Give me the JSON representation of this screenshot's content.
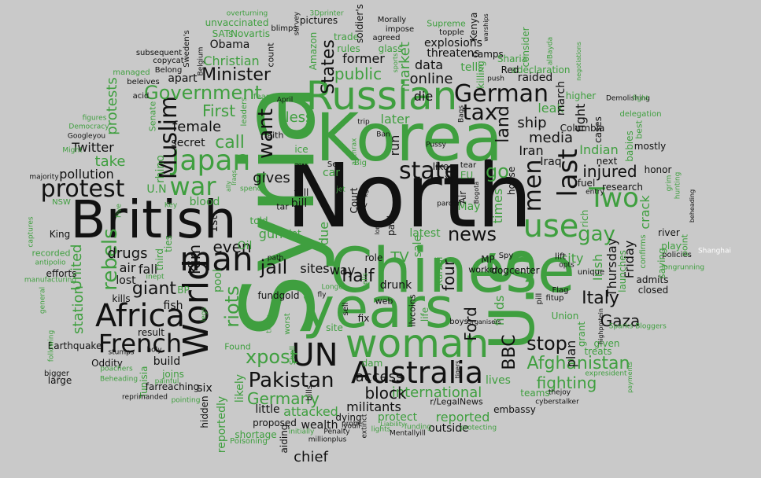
{
  "cloud": {
    "colors": {
      "background": "#c9c9c9",
      "green": "#3f9f3f",
      "black": "#111111",
      "white": "#ffffff"
    },
    "words": {
      "north": "North",
      "syria": "Syria",
      "korea": "Korea",
      "chinese": "Chinese",
      "years": "years",
      "us": "U.S",
      "british": "British",
      "russian": "Russian",
      "woman": "woman",
      "australia": "Australia",
      "world": "World",
      "africa": "Africa",
      "french": "French",
      "un": "UN",
      "man": "man",
      "japan": "Japan",
      "muslim": "Muslim",
      "war": "war",
      "protest": "protest",
      "state": "state",
      "pakistan": "Pakistan",
      "german": "German",
      "use": "use",
      "two": "Two",
      "gay": "gay",
      "tax": "tax",
      "government": "Government",
      "minister": "Minister",
      "stop": "stop",
      "xpost": "xpost",
      "riots": "riots",
      "afghanistan": "Afghanistan",
      "news": "news",
      "public": "public",
      "states": "States",
      "want": "want",
      "last": "last",
      "men": "men",
      "land": "land",
      "italy": "Italy",
      "gaza": "Gaza",
      "bbc": "BBC",
      "germany": "Germany",
      "international": "international",
      "block": "block",
      "fighting": "fighting",
      "jail": "jail",
      "giant": "giant",
      "half": "half",
      "four": "four",
      "injured": "injured",
      "call": "call",
      "first": "First",
      "christian": "Christian",
      "female": "female",
      "gives": "gives",
      "rebels": "rebels",
      "united": "United",
      "kim": "Kim",
      "drugs": "drugs",
      "even": "even",
      "twitter": "Twitter",
      "pollution": "pollution",
      "access": "access",
      "online": "online",
      "market": "market",
      "data": "data",
      "ford": "Ford",
      "militants": "militants",
      "attacked": "attacked",
      "reported": "reported",
      "chief": "chief",
      "go": "go",
      "media": "media",
      "ship": "ship",
      "iran": "Iran",
      "friday": "Friday",
      "thursday": "Thursday",
      "crack": "crack",
      "irish": "Irish",
      "city": "city",
      "plan": "plan",
      "finds": "finds",
      "less": "less",
      "times": "times",
      "die": "die",
      "fight": "fight",
      "former": "former",
      "obama": "Obama",
      "gun": "gun",
      "sale": "sale",
      "apart": "apart",
      "secret": "secret",
      "take": "take",
      "un_alt": "U.N",
      "air": "air",
      "fall": "fall",
      "lost": "lost",
      "fish": "fish",
      "build": "build",
      "large": "large",
      "oddity": "Oddity",
      "earthquake": "Earthquake",
      "king": "King",
      "efforts": "efforts",
      "bigger": "bigger",
      "kills": "kills",
      "result": "result",
      "sites": "sites",
      "fundgold": "fundgold",
      "little": "little",
      "proposed": "proposed",
      "wealth": "wealth",
      "aiding": "aiding",
      "six": "six",
      "hidden": "hidden",
      "joins": "joins",
      "tunisia": "Tunisia",
      "farreaching": "farreaching",
      "likely": "likely",
      "reportedly": "reportedly",
      "shortage": "shortage",
      "protect": "protect",
      "outside": "outside",
      "embassy": "embassy",
      "lives": "lives",
      "teams": "teams",
      "treats": "treats",
      "given": "given",
      "union": "Union",
      "closed": "closed",
      "admits": "admits",
      "river": "river",
      "policies": "policies",
      "shanghai": "Shanghai",
      "research": "research",
      "fuel": "fuel",
      "columbia": "Columbia",
      "raided": "raided",
      "next": "next",
      "mostly": "mostly",
      "babies": "babies",
      "honor": "honor",
      "cases": "cases",
      "indian": "Indian",
      "leak": "leak",
      "march": "march",
      "saying": "saying",
      "play": "play",
      "point": "point",
      "iraq": "Iraq",
      "house": "house",
      "explosions": "explosions",
      "threatens": "threatens",
      "tells": "tells",
      "killing": "killing",
      "camps": "camps",
      "kenya": "Kenya",
      "consider": "consider",
      "adeclaration": "adeclaration",
      "sharia": "Sharia",
      "higher": "higher",
      "delegation": "delegation",
      "bills": "bills",
      "drunk": "drunk",
      "role": "role",
      "way": "way",
      "latest": "latest",
      "life": "life",
      "tv": "TV",
      "run": "run",
      "court": "Court",
      "later": "later",
      "amazon": "Amazon",
      "glass": "glass",
      "rules": "rules",
      "trade": "trade",
      "site": "site",
      "found": "Found",
      "faith": "faith",
      "ice": "ice",
      "toll": "toll",
      "bill": "bill",
      "tar": "tar",
      "lot": "lot",
      "oil": "Oil",
      "told": "told",
      "1st": "1st",
      "pool": "pool",
      "blood": "blood",
      "war_alt": "war",
      "dying": "dying",
      "dogcenter": "dogcenter",
      "mp": "MP",
      "karzai": "Karzai",
      "dam": "dam",
      "fix": "fix",
      "web": "web",
      "sell": "sell",
      "boys": "boys",
      "ilvcoins": "ilvcoins",
      "unique": "unique",
      "flag": "Flag",
      "fitup": "fitup",
      "lift": "lift",
      "spy": "Spy",
      "worker": "worker",
      "pill": "pill",
      "may": "May",
      "rich": "rich",
      "launches": "launches",
      "grant": "grant",
      "ties": "ties",
      "third": "third",
      "bp": "BP",
      "recorded": "recorded",
      "station": "station",
      "protests": "protests",
      "rhino": "rhino",
      "first_small": "first",
      "senate": "Senate",
      "christian_small": "Christian",
      "novartis": "Novartis",
      "sats": "SATs",
      "unvaccinated": "unvaccinated",
      "count": "count",
      "pictures": "pictures",
      "soldiers": "soldier's",
      "impose": "impose",
      "agreed": "agreed",
      "topple": "topple",
      "supreme": "Supreme",
      "morally": "Morally",
      "3dprinter": "3Dprinter",
      "blimps": "blimps",
      "overturning": "overturning",
      "subsequent": "subsequent",
      "copycat": "copycat",
      "belong": "Belong",
      "swedens": "Sweden's",
      "belgium": "Belgium",
      "managed": "managed",
      "beleives": "beleives",
      "acid": "acid",
      "figures": "figures",
      "democracy": "Democracy",
      "googleyou": "Googleyou",
      "might": "Might",
      "majority": "majority",
      "nsw": "NSW",
      "general": "general",
      "antipolio": "antipolio",
      "manufacturing": "manufacturing",
      "following": "following",
      "captures": "captures",
      "stumps": "stumps",
      "holy": "holy",
      "poachers": "poachers",
      "beheading": "Beheading",
      "painful": "painful",
      "reprimanded": "reprimanded",
      "pointing": "pointing",
      "poisoning": "Poisoning",
      "initially": "initially",
      "penalty": "Penalty",
      "millionplus": "millionplus",
      "mentallyill": "Mentallyill",
      "lights": "lights",
      "funding": "funding",
      "liability": "Liability",
      "protecting": "protecting",
      "cyberstalker": "cyberstalker",
      "thejoy": "thejoy",
      "rlegalnews": "r/LegalNews",
      "extinct": "extinct",
      "probe": "probe",
      "youll": "youll",
      "bloggers": "Bloggers",
      "expresident": "expresident",
      "sparks": "Sparks",
      "rise": "rise",
      "confirms": "confirms",
      "longrunning": "longrunning",
      "beheading_small": "beheading",
      "grim": "grim",
      "hunting": "hunting",
      "demolishing": "Demolishing",
      "fight_small": "fight",
      "best": "best",
      "sell_small": "sell",
      "flight": "flight",
      "entry": "entry",
      "opts": "opts",
      "highprotein": "highprotein",
      "path": "path",
      "ban": "Ban",
      "pussy": "Pussy",
      "bags": "Bags",
      "push": "push",
      "trip": "trip",
      "april": "April",
      "sex": "Sex",
      "pardon": "pardon",
      "tear": "tear",
      "eu": "EU",
      "big": "Big",
      "law": "Law",
      "fly": "fly",
      "pilot": "pilot",
      "longer": "Longer",
      "cells": "cells",
      "organisers": "Organisers",
      "inept": "inept",
      "key": "Key",
      "iraqs": "Iraqs",
      "spends": "spends",
      "worst": "worst",
      "thing": "thing",
      "legs": "legs",
      "alqaeda": "alBayda",
      "warships": "warships",
      "negotiations": "negotiations",
      "fear": "fear",
      "leaders": "leaders",
      "ambassador": "anthrax",
      "bogota": "Bogota",
      "air_alt": "Air",
      "red": "Red",
      "jet": "jet",
      "dorm": "dorm",
      "tiger": "tigers",
      "five": "Five",
      "oil_small": "oil",
      "gang": "gang",
      "try": "try",
      "kg": "kg",
      "long": "long",
      "paid": "paid",
      "due": "due",
      "car": "car",
      "xi": "Xi",
      "like": "like",
      "ally": "ally",
      "survey": "survey",
      "drive": "drive",
      "shell": "Shell",
      "payments": "payments",
      "sports": "sports",
      "smoking": "smoking"
    }
  }
}
